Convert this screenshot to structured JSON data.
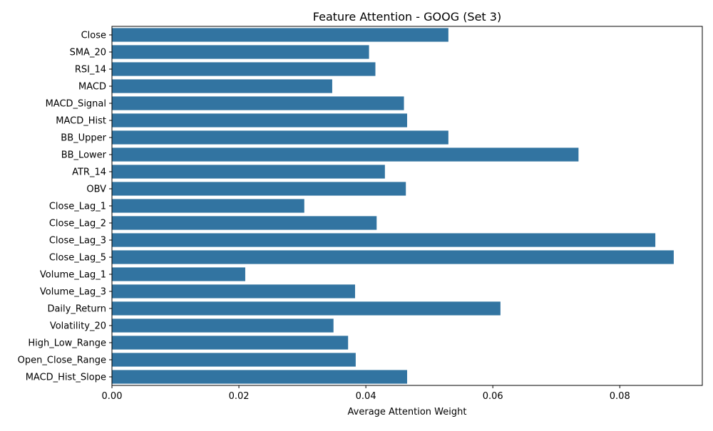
{
  "chart_data": {
    "type": "bar",
    "orientation": "horizontal",
    "title": "Feature Attention - GOOG (Set 3)",
    "xlabel": "Average Attention Weight",
    "ylabel": "",
    "xlim": [
      0,
      0.093
    ],
    "x_ticks": [
      0.0,
      0.02,
      0.04,
      0.06,
      0.08
    ],
    "x_tick_labels": [
      "0.00",
      "0.02",
      "0.04",
      "0.06",
      "0.08"
    ],
    "grid": false,
    "bar_color": "#3274a1",
    "categories": [
      "Close",
      "SMA_20",
      "RSI_14",
      "MACD",
      "MACD_Signal",
      "MACD_Hist",
      "BB_Upper",
      "BB_Lower",
      "ATR_14",
      "OBV",
      "Close_Lag_1",
      "Close_Lag_2",
      "Close_Lag_3",
      "Close_Lag_5",
      "Volume_Lag_1",
      "Volume_Lag_3",
      "Daily_Return",
      "Volatility_20",
      "High_Low_Range",
      "Open_Close_Range",
      "MACD_Hist_Slope"
    ],
    "values": [
      0.053,
      0.0405,
      0.0415,
      0.0347,
      0.046,
      0.0465,
      0.053,
      0.0735,
      0.043,
      0.0463,
      0.0303,
      0.0417,
      0.0856,
      0.0885,
      0.021,
      0.0383,
      0.0612,
      0.0349,
      0.0372,
      0.0384,
      0.0465
    ]
  }
}
